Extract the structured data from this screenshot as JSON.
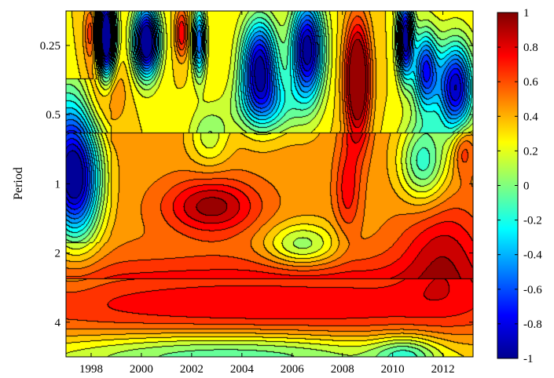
{
  "chart_data": {
    "type": "heatmap",
    "title": "",
    "xlabel": "",
    "ylabel": "Period",
    "x_ticks": [
      "1998",
      "2000",
      "2002",
      "2004",
      "2006",
      "2008",
      "2010",
      "2012"
    ],
    "x_tick_values": [
      1998,
      2000,
      2002,
      2004,
      2006,
      2008,
      2010,
      2012
    ],
    "xlim": [
      1997.0,
      2013.2
    ],
    "y_scale": "log2",
    "y_ticks": [
      "0.25",
      "0.5",
      "1",
      "2",
      "4"
    ],
    "y_tick_values": [
      0.25,
      0.5,
      1,
      2,
      4
    ],
    "ylim": [
      0.177,
      5.66
    ],
    "colorbar": {
      "ticks": [
        "1",
        "0.8",
        "0.6",
        "0.4",
        "0.2",
        "0",
        "-0.2",
        "-0.4",
        "-0.6",
        "-0.8",
        "-1"
      ],
      "tick_values": [
        1,
        0.8,
        0.6,
        0.4,
        0.2,
        0,
        -0.2,
        -0.4,
        -0.6,
        -0.8,
        -1
      ],
      "range": [
        -1,
        1
      ],
      "colormap": "jet"
    },
    "value_blobs": [
      {
        "x": 2008.6,
        "period": 0.35,
        "spread_years": 0.35,
        "spread_octaves": 0.6,
        "amplitude": 0.95
      },
      {
        "x": 1998.6,
        "period": 0.23,
        "spread_years": 0.25,
        "spread_octaves": 0.45,
        "amplitude": -1.6
      },
      {
        "x": 2000.2,
        "period": 0.24,
        "spread_years": 0.35,
        "spread_octaves": 0.35,
        "amplitude": -1.5
      },
      {
        "x": 2002.3,
        "period": 0.24,
        "spread_years": 0.18,
        "spread_octaves": 0.35,
        "amplitude": -0.9
      },
      {
        "x": 2004.7,
        "period": 0.3,
        "spread_years": 0.5,
        "spread_octaves": 0.45,
        "amplitude": -1.2
      },
      {
        "x": 2006.6,
        "period": 0.26,
        "spread_years": 0.45,
        "spread_octaves": 0.5,
        "amplitude": -1.3
      },
      {
        "x": 2010.5,
        "period": 0.23,
        "spread_years": 0.22,
        "spread_octaves": 0.4,
        "amplitude": -1.3
      },
      {
        "x": 2011.3,
        "period": 0.32,
        "spread_years": 0.35,
        "spread_octaves": 0.4,
        "amplitude": -1.0
      },
      {
        "x": 2012.5,
        "period": 0.38,
        "spread_years": 0.5,
        "spread_octaves": 0.45,
        "amplitude": -1.2
      },
      {
        "x": 2005.0,
        "period": 0.45,
        "spread_years": 0.9,
        "spread_octaves": 0.3,
        "amplitude": -0.5
      },
      {
        "x": 1998.6,
        "period": 0.4,
        "spread_years": 0.5,
        "spread_octaves": 0.35,
        "amplitude": 0.35
      },
      {
        "x": 1998.0,
        "period": 0.22,
        "spread_years": 0.2,
        "spread_octaves": 0.3,
        "amplitude": 0.4
      },
      {
        "x": 2001.6,
        "period": 0.22,
        "spread_years": 0.18,
        "spread_octaves": 0.25,
        "amplitude": 0.5
      },
      {
        "x": 2002.7,
        "period": 0.62,
        "spread_years": 0.55,
        "spread_octaves": 0.3,
        "amplitude": -0.3
      },
      {
        "x": 2011.2,
        "period": 0.8,
        "spread_years": 0.65,
        "spread_octaves": 0.4,
        "amplitude": -0.6
      },
      {
        "x": 1997.4,
        "period": 1.0,
        "spread_years": 0.7,
        "spread_octaves": 0.6,
        "amplitude": -1.1
      },
      {
        "x": 2002.8,
        "period": 1.25,
        "spread_years": 1.3,
        "spread_octaves": 0.28,
        "amplitude": 0.5
      },
      {
        "x": 2008.2,
        "period": 1.05,
        "spread_years": 0.35,
        "spread_octaves": 0.45,
        "amplitude": 0.3
      },
      {
        "x": 2012.8,
        "period": 0.7,
        "spread_years": 0.3,
        "spread_octaves": 0.25,
        "amplitude": 0.3
      },
      {
        "x": 2006.4,
        "period": 1.85,
        "spread_years": 1.0,
        "spread_octaves": 0.22,
        "amplitude": -0.45
      },
      {
        "x": 2005.0,
        "period": 3.4,
        "spread_years": 10.0,
        "spread_octaves": 0.45,
        "amplitude": 0.5
      },
      {
        "x": 2012.0,
        "period": 1.9,
        "spread_years": 1.2,
        "spread_octaves": 0.5,
        "amplitude": 0.35
      },
      {
        "x": 2003.5,
        "period": 5.5,
        "spread_years": 5.0,
        "spread_octaves": 0.25,
        "amplitude": -0.5
      },
      {
        "x": 2010.5,
        "period": 5.6,
        "spread_years": 0.9,
        "spread_octaves": 0.2,
        "amplitude": -0.4
      }
    ],
    "value_baseline": 0.3,
    "value_baseline_boost": {
      "from_period": 0.6,
      "to_period": 2.6,
      "amount": 0.15
    },
    "value_edge_falloff": {
      "period": 0.7,
      "years": 0.8,
      "amount": 0.6
    }
  }
}
